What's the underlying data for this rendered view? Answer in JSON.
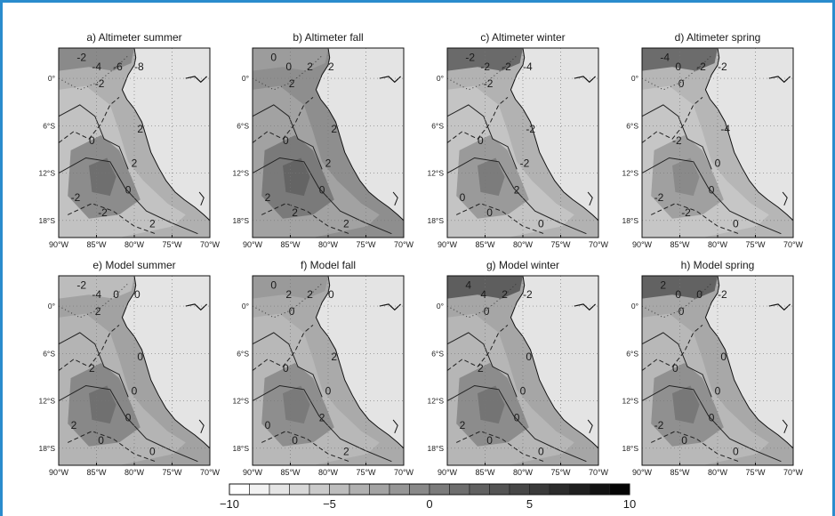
{
  "panels": [
    {
      "id": "a",
      "title": "a) Altimeter summer",
      "labels": [
        "-2",
        "-4",
        "-6",
        "-8",
        "-2",
        "2",
        "0",
        "2",
        "0",
        "-2",
        "-2",
        "2"
      ]
    },
    {
      "id": "b",
      "title": "b) Altimeter fall",
      "labels": [
        "0",
        "0",
        "2",
        "2",
        "2",
        "2",
        "0",
        "2",
        "0",
        "2",
        "2",
        "2"
      ]
    },
    {
      "id": "c",
      "title": "c) Altimeter winter",
      "labels": [
        "-2",
        "-2",
        "-2",
        "-4",
        "-2",
        "-2",
        "0",
        "-2",
        "2",
        "0",
        "0",
        "0"
      ]
    },
    {
      "id": "d",
      "title": "d) Altimeter spring",
      "labels": [
        "-4",
        "0",
        "-2",
        "-2",
        "0",
        "-4",
        "-2",
        "0",
        "0",
        "-2",
        "-2",
        "0"
      ]
    },
    {
      "id": "e",
      "title": "e) Model summer",
      "labels": [
        "-2",
        "-4",
        "0",
        "0",
        "2",
        "0",
        "2",
        "0",
        "0",
        "2",
        "0",
        "0"
      ]
    },
    {
      "id": "f",
      "title": "f) Model fall",
      "labels": [
        "0",
        "2",
        "2",
        "0",
        "0",
        "2",
        "0",
        "0",
        "2",
        "0",
        "0",
        "2"
      ]
    },
    {
      "id": "g",
      "title": "g) Model winter",
      "labels": [
        "4",
        "4",
        "2",
        "-2",
        "0",
        "0",
        "2",
        "0",
        "0",
        "2",
        "0",
        "0"
      ]
    },
    {
      "id": "h",
      "title": "h) Model spring",
      "labels": [
        "2",
        "0",
        "0",
        "-2",
        "0",
        "0",
        "0",
        "0",
        "0",
        "-2",
        "0",
        "0"
      ]
    }
  ],
  "lat_labels": [
    "0°",
    "6°S",
    "12°S",
    "18°S"
  ],
  "lon_labels": [
    "90°W",
    "85°W",
    "80°W",
    "75°W",
    "70°W"
  ],
  "colorbar": {
    "min": -10,
    "max": 10,
    "step": 1,
    "tick_labels": [
      "−10",
      "−5",
      "0",
      "5",
      "10"
    ]
  },
  "colors": {
    "border": "#2a8ccd",
    "land": "#e4e4e4"
  }
}
